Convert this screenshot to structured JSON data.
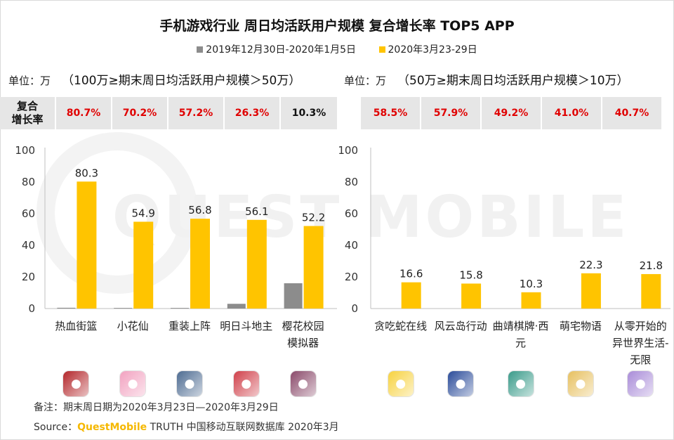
{
  "title": "手机游戏行业 周日均活跃用户规模 复合增长率 TOP5 APP",
  "legend": [
    {
      "label": "2019年12月30日-2020年1月5日",
      "color": "#8c8c8c"
    },
    {
      "label": "2020年3月23-29日",
      "color": "#ffc400"
    }
  ],
  "left": {
    "unit_label": "单位：万",
    "range_label": "（100万≥期末周日均活跃用户规模＞50万）",
    "growth_header": "复合\n增长率",
    "growth": [
      "80.7%",
      "70.2%",
      "57.2%",
      "26.3%",
      "10.3%"
    ]
  },
  "right": {
    "unit_label": "单位：万",
    "range_label": "（50万≥期末周日均活跃用户规模＞10万）",
    "growth": [
      "58.5%",
      "57.9%",
      "49.2%",
      "41.0%",
      "40.7%"
    ]
  },
  "chart_data": [
    {
      "type": "bar",
      "categories": [
        "热血街篮",
        "小花仙",
        "重装上阵",
        "明日斗地主",
        "樱花校园模拟器"
      ],
      "ylim": [
        0,
        100
      ],
      "yticks": [
        0,
        20,
        40,
        60,
        80,
        100
      ],
      "series": [
        {
          "name": "2019年12月30日-2020年1月5日",
          "values": [
            0.5,
            0.4,
            0.4,
            3.0,
            16.0
          ]
        },
        {
          "name": "2020年3月23-29日",
          "values": [
            80.3,
            54.9,
            56.8,
            56.1,
            52.2
          ]
        }
      ],
      "data_labels": [
        "80.3",
        "54.9",
        "56.8",
        "56.1",
        "52.2"
      ]
    },
    {
      "type": "bar",
      "categories": [
        "贪吃蛇在线",
        "风云岛行动",
        "曲靖棋牌·西元",
        "萌宅物语",
        "从零开始的异世界生活-无限"
      ],
      "ylim": [
        0,
        100
      ],
      "yticks": [
        0,
        20,
        40,
        60,
        80,
        100
      ],
      "series": [
        {
          "name": "2019年12月30日-2020年1月5日",
          "values": [
            0,
            0,
            0,
            0,
            0
          ]
        },
        {
          "name": "2020年3月23-29日",
          "values": [
            16.6,
            15.8,
            10.3,
            22.3,
            21.8
          ]
        }
      ],
      "data_labels": [
        "16.6",
        "15.8",
        "10.3",
        "22.3",
        "21.8"
      ]
    }
  ],
  "x_labels_left": [
    "热血街篮",
    "小花仙",
    "重装上阵",
    "明日斗地主",
    "樱花校园\n模拟器"
  ],
  "x_labels_right": [
    "贪吃蛇在线",
    "风云岛行动",
    "曲靖棋牌·西\n元",
    "萌宅物语",
    "从零开始的\n异世界生活-\n无限"
  ],
  "icons_left": [
    {
      "name": "basketball-game-icon",
      "color": "#b3262a"
    },
    {
      "name": "flower-girl-icon",
      "color": "#f2a2c0"
    },
    {
      "name": "mech-robot-icon",
      "color": "#4e6c92"
    },
    {
      "name": "doudizhu-girl-icon",
      "color": "#d0404a"
    },
    {
      "name": "school-girls-icon",
      "color": "#8a4a6a"
    }
  ],
  "icons_right": [
    {
      "name": "pikachu-icon",
      "color": "#f7d240"
    },
    {
      "name": "anime-hero-icon",
      "color": "#2b4c9a"
    },
    {
      "name": "mahjong-girl-icon",
      "color": "#3a9b8a"
    },
    {
      "name": "chibi-girl-icon",
      "color": "#e7c060"
    },
    {
      "name": "rem-anime-icon",
      "color": "#a98cd8"
    }
  ],
  "watermark": "QUEST MOBILE",
  "note": "备注：期末周日期为2020年3月23日—2020年3月29日",
  "source": {
    "prefix": "Source：",
    "brand": "QuestMobile",
    "rest": " TRUTH 中国移动互联网数据库 2020年3月"
  }
}
